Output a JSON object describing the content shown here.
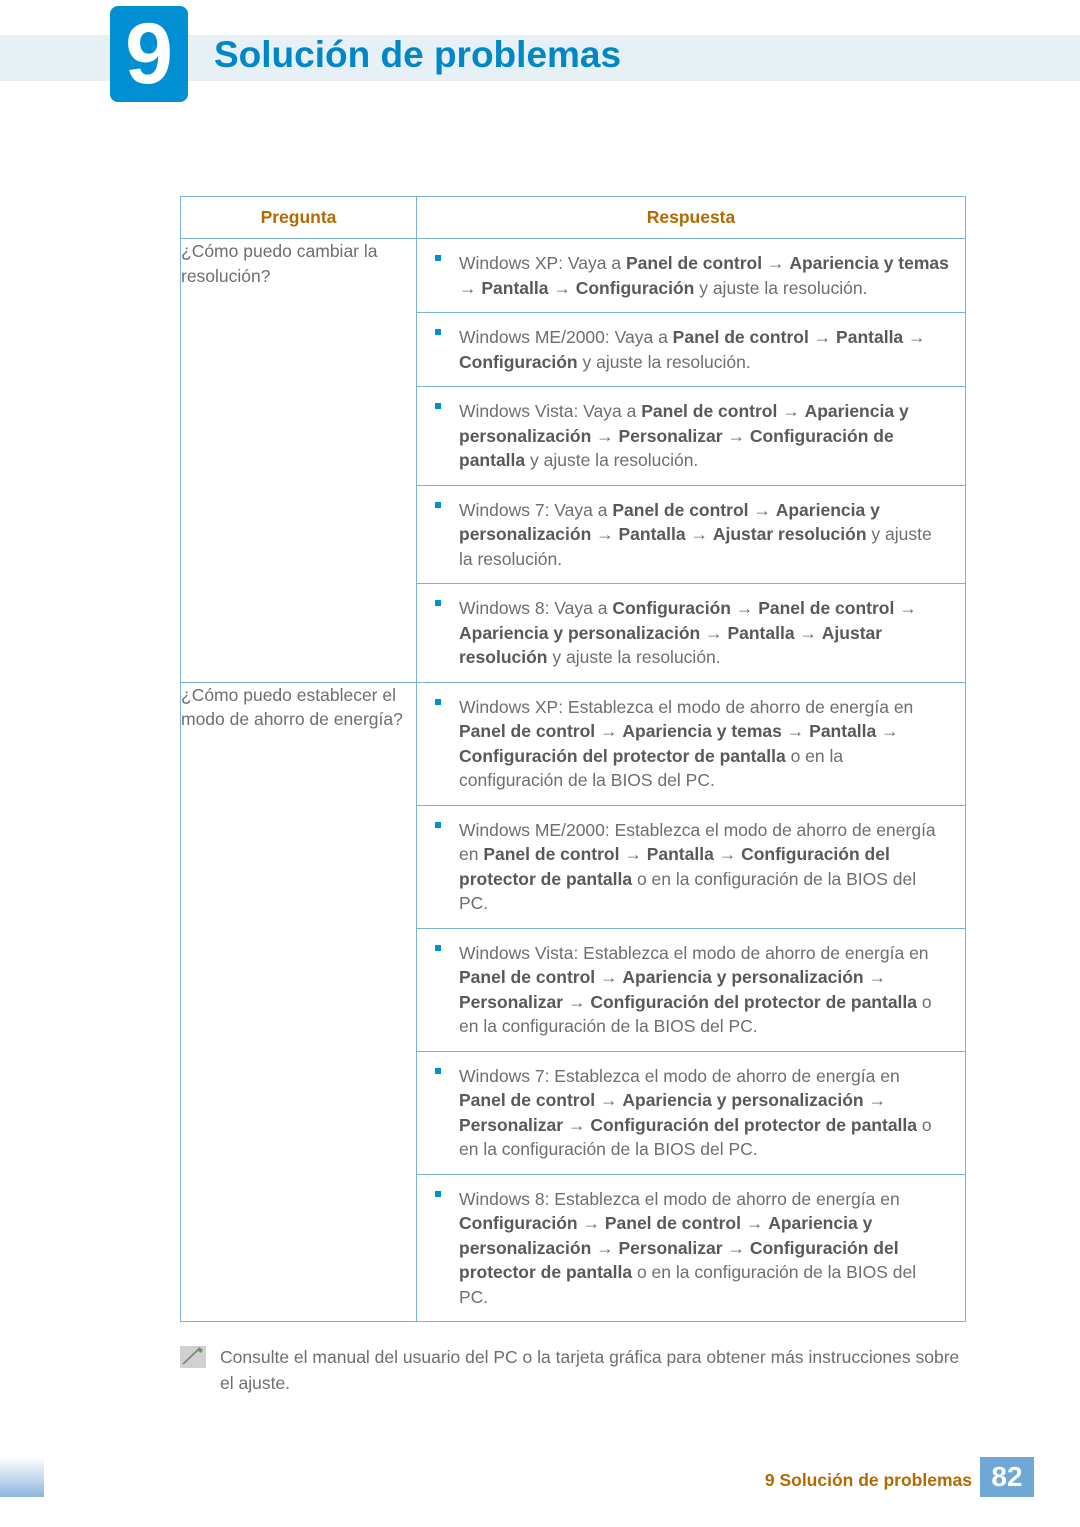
{
  "chapter": {
    "number": "9",
    "title": "Solución de problemas"
  },
  "table": {
    "headers": {
      "question": "Pregunta",
      "answer": "Respuesta"
    },
    "rows": [
      {
        "question": "¿Cómo puedo cambiar la resolución?",
        "answers": [
          {
            "html": "Windows XP: Vaya a <span class='b'>Panel de control</span> → <span class='b'>Apariencia y temas</span> → <span class='b'>Pantalla</span> → <span class='b'>Configuración</span> y ajuste la resolución."
          },
          {
            "html": "Windows ME/2000: Vaya a <span class='b'>Panel de control</span> → <span class='b'>Pantalla</span> → <span class='b'>Configuración</span> y ajuste la resolución."
          },
          {
            "html": "Windows Vista: Vaya a <span class='b'>Panel de control</span> → <span class='b'>Apariencia y personalización</span> → <span class='b'>Personalizar</span> → <span class='b'>Configuración de pantalla</span> y ajuste la resolución."
          },
          {
            "html": "Windows 7: Vaya a <span class='b'>Panel de control</span> → <span class='b'>Apariencia y personalización</span> → <span class='b'>Pantalla</span> → <span class='b'>Ajustar resolución</span> y ajuste la resolución."
          },
          {
            "html": "Windows 8: Vaya a <span class='b'>Configuración</span> → <span class='b'>Panel de control</span> → <span class='b'>Apariencia y personalización</span> → <span class='b'>Pantalla</span> → <span class='b'>Ajustar resolución</span> y ajuste la resolución."
          }
        ]
      },
      {
        "question": "¿Cómo puedo establecer el modo de ahorro de energía?",
        "answers": [
          {
            "html": "Windows XP: Establezca el modo de ahorro de energía en <span class='b'>Panel de control</span> → <span class='b'>Apariencia y temas</span> → <span class='b'>Pantalla</span> → <span class='b'>Configuración del protector de pantalla</span> o en la configuración de la BIOS del PC."
          },
          {
            "html": "Windows ME/2000: Establezca el modo de ahorro de energía en <span class='b'>Panel de control</span> → <span class='b'>Pantalla</span> → <span class='b'>Configuración del protector de pantalla</span> o en la configuración de la BIOS del PC."
          },
          {
            "html": "Windows Vista: Establezca el modo de ahorro de energía en <span class='b'>Panel de control</span> → <span class='b'>Apariencia y personalización</span> → <span class='b'>Personalizar</span> → <span class='b'>Configuración del protector de pantalla</span> o en la configuración de la BIOS del PC."
          },
          {
            "html": "Windows 7: Establezca el modo de ahorro de energía en <span class='b'>Panel de control</span> → <span class='b'>Apariencia y personalización</span> → <span class='b'>Personalizar</span> → <span class='b'>Configuración del protector de pantalla</span> o en la configuración de la BIOS del PC."
          },
          {
            "html": "Windows 8: Establezca el modo de ahorro de energía en <span class='b'>Configuración</span> → <span class='b'>Panel de control</span> → <span class='b'>Apariencia y personalización</span> → <span class='b'>Personalizar</span> → <span class='b'>Configuración del protector de pantalla</span> o en la configuración de la BIOS del PC."
          }
        ]
      }
    ]
  },
  "note": "Consulte el manual del usuario del PC o la tarjeta gráfica para obtener más instrucciones sobre el ajuste.",
  "footer": {
    "label": "9 Solución de problemas",
    "page": "82"
  },
  "colors": {
    "accent_blue": "#008fd3",
    "header_blue": "#0087c6",
    "table_border": "#7db4d6",
    "brown_header": "#b46a00",
    "body_text": "#6e6e6e",
    "top_bar_bg": "#e7f0f5",
    "footer_box": "#6fa7d7"
  }
}
